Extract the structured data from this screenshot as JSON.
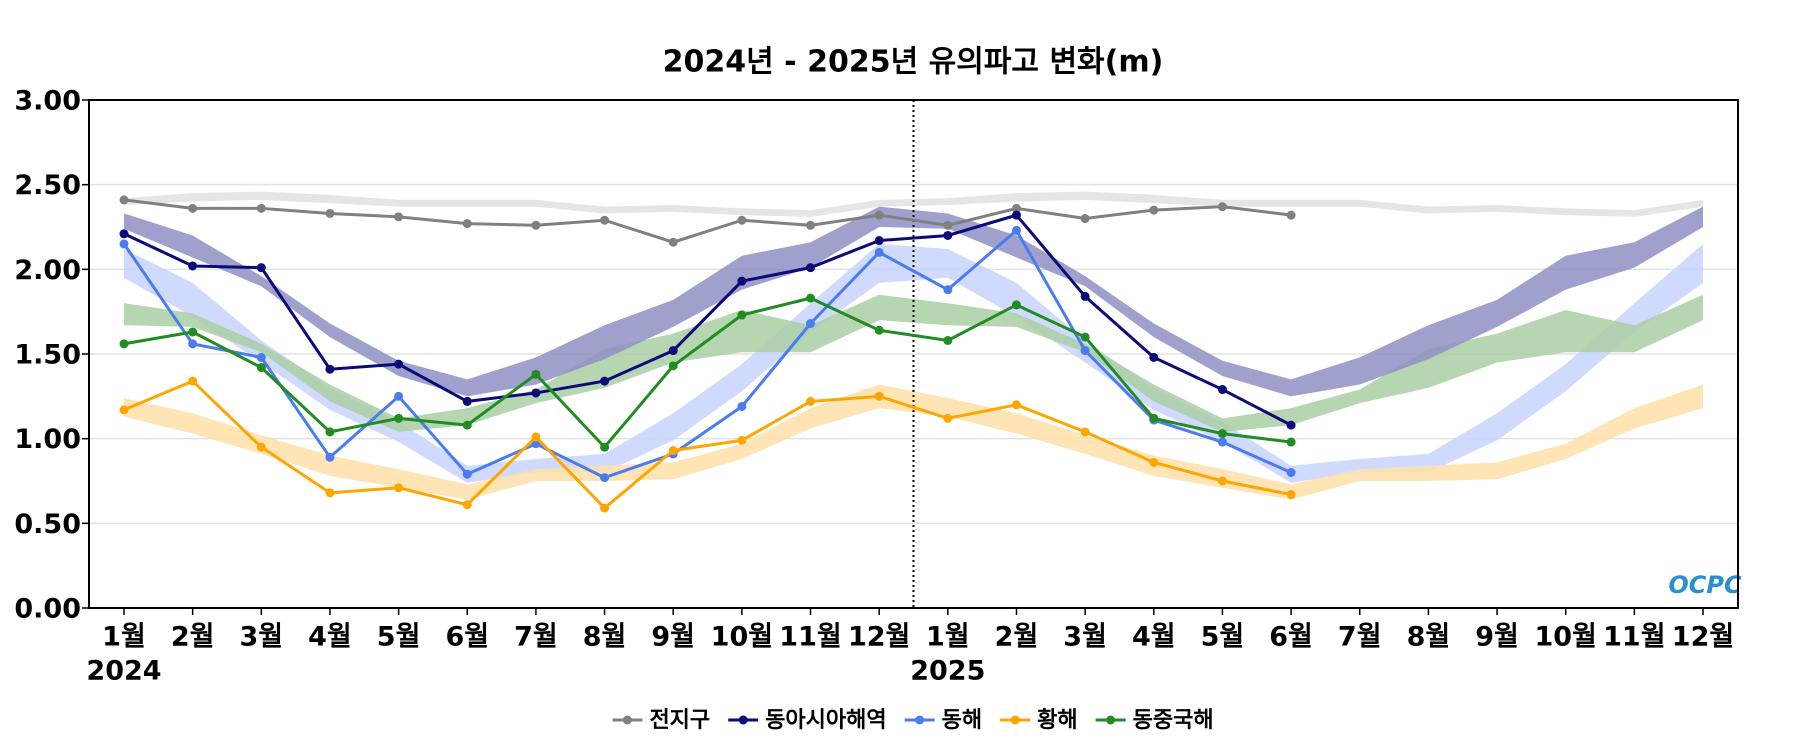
{
  "chart_data": {
    "type": "line",
    "title": "2024년 - 2025년 유의파고 변화(m)",
    "categories": [
      "1월",
      "2월",
      "3월",
      "4월",
      "5월",
      "6월",
      "7월",
      "8월",
      "9월",
      "10월",
      "11월",
      "12월",
      "1월",
      "2월",
      "3월",
      "4월",
      "5월",
      "6월",
      "7월",
      "8월",
      "9월",
      "10월",
      "11월",
      "12월"
    ],
    "years": [
      "2024",
      "2025"
    ],
    "ylim": [
      0,
      3
    ],
    "yticks": [
      {
        "value": 0,
        "label": "0.00"
      },
      {
        "value": 0.5,
        "label": "0.50"
      },
      {
        "value": 1,
        "label": "1.00"
      },
      {
        "value": 1.5,
        "label": "1.50"
      },
      {
        "value": 2,
        "label": "2.00"
      },
      {
        "value": 2.5,
        "label": "2.50"
      },
      {
        "value": 3,
        "label": "3.00"
      }
    ],
    "grid": true,
    "logo": "OCPC",
    "series": [
      {
        "name": "전지구",
        "color": "#808080",
        "values": [
          2.41,
          2.36,
          2.36,
          2.33,
          2.31,
          2.27,
          2.26,
          2.29,
          2.16,
          2.29,
          2.26,
          2.32,
          2.26,
          2.36,
          2.3,
          2.35,
          2.37,
          2.32,
          null,
          null,
          null,
          null,
          null,
          null
        ]
      },
      {
        "name": "동아시아해역",
        "color": "#0a0a78",
        "values": [
          2.21,
          2.02,
          2.01,
          1.41,
          1.44,
          1.22,
          1.27,
          1.34,
          1.52,
          1.93,
          2.01,
          2.17,
          2.2,
          2.32,
          1.84,
          1.48,
          1.29,
          1.08,
          null,
          null,
          null,
          null,
          null,
          null
        ]
      },
      {
        "name": "동해",
        "color": "#4a7cf0",
        "values": [
          2.15,
          1.56,
          1.48,
          0.89,
          1.25,
          0.79,
          0.97,
          0.77,
          0.91,
          1.19,
          1.68,
          2.1,
          1.88,
          2.23,
          1.52,
          1.11,
          0.98,
          0.8,
          null,
          null,
          null,
          null,
          null,
          null
        ]
      },
      {
        "name": "황해",
        "color": "#ffa500",
        "values": [
          1.17,
          1.34,
          0.95,
          0.68,
          0.71,
          0.61,
          1.01,
          0.59,
          0.93,
          0.99,
          1.22,
          1.25,
          1.12,
          1.2,
          1.04,
          0.86,
          0.75,
          0.67,
          null,
          null,
          null,
          null,
          null,
          null
        ]
      },
      {
        "name": "동중국해",
        "color": "#228b22",
        "values": [
          1.56,
          1.63,
          1.42,
          1.04,
          1.12,
          1.08,
          1.38,
          0.95,
          1.43,
          1.73,
          1.83,
          1.64,
          1.58,
          1.79,
          1.6,
          1.12,
          1.03,
          0.98,
          null,
          null,
          null,
          null,
          null,
          null
        ]
      }
    ],
    "bands": [
      {
        "color": "#e0e0e0",
        "high": [
          2.42,
          2.45,
          2.46,
          2.44,
          2.41,
          2.41,
          2.41,
          2.37,
          2.38,
          2.36,
          2.35,
          2.41,
          2.42,
          2.45,
          2.46,
          2.44,
          2.41,
          2.41,
          2.41,
          2.37,
          2.38,
          2.36,
          2.35,
          2.41
        ],
        "low": [
          2.38,
          2.4,
          2.41,
          2.39,
          2.37,
          2.37,
          2.37,
          2.33,
          2.34,
          2.32,
          2.31,
          2.37,
          2.38,
          2.4,
          2.41,
          2.39,
          2.37,
          2.37,
          2.37,
          2.33,
          2.34,
          2.32,
          2.31,
          2.37
        ]
      },
      {
        "color": "#c8d4ff",
        "high": [
          2.12,
          1.92,
          1.58,
          1.3,
          1.1,
          0.84,
          0.88,
          0.91,
          1.15,
          1.44,
          1.8,
          2.15,
          2.12,
          1.92,
          1.58,
          1.3,
          1.1,
          0.84,
          0.88,
          0.91,
          1.15,
          1.44,
          1.8,
          2.15
        ],
        "low": [
          1.95,
          1.72,
          1.45,
          1.17,
          0.98,
          0.74,
          0.8,
          0.8,
          0.99,
          1.28,
          1.63,
          1.92,
          1.95,
          1.72,
          1.45,
          1.17,
          0.98,
          0.74,
          0.8,
          0.8,
          0.99,
          1.28,
          1.63,
          1.92
        ]
      },
      {
        "color": "#ffe0a8",
        "high": [
          1.24,
          1.15,
          1.02,
          0.9,
          0.82,
          0.73,
          0.82,
          0.84,
          0.86,
          0.97,
          1.18,
          1.32,
          1.24,
          1.15,
          1.02,
          0.9,
          0.82,
          0.73,
          0.82,
          0.84,
          0.86,
          0.97,
          1.18,
          1.32
        ],
        "low": [
          1.13,
          1.03,
          0.91,
          0.78,
          0.71,
          0.64,
          0.75,
          0.75,
          0.76,
          0.88,
          1.06,
          1.18,
          1.13,
          1.03,
          0.91,
          0.78,
          0.71,
          0.64,
          0.75,
          0.75,
          0.76,
          0.88,
          1.06,
          1.18
        ]
      },
      {
        "color": "#a9cfa3",
        "high": [
          1.8,
          1.74,
          1.56,
          1.32,
          1.12,
          1.18,
          1.29,
          1.53,
          1.62,
          1.76,
          1.67,
          1.85,
          1.8,
          1.74,
          1.56,
          1.32,
          1.12,
          1.18,
          1.29,
          1.53,
          1.62,
          1.76,
          1.67,
          1.85
        ],
        "low": [
          1.67,
          1.66,
          1.51,
          1.22,
          1.04,
          1.08,
          1.21,
          1.3,
          1.45,
          1.51,
          1.51,
          1.7,
          1.67,
          1.66,
          1.51,
          1.22,
          1.04,
          1.08,
          1.21,
          1.3,
          1.45,
          1.51,
          1.51,
          1.7
        ]
      },
      {
        "color": "#8f8fc4",
        "high": [
          2.33,
          2.2,
          1.96,
          1.68,
          1.46,
          1.35,
          1.48,
          1.67,
          1.82,
          2.08,
          2.16,
          2.37,
          2.33,
          2.2,
          1.96,
          1.68,
          1.46,
          1.35,
          1.48,
          1.67,
          1.82,
          2.08,
          2.16,
          2.37
        ],
        "low": [
          2.24,
          2.07,
          1.9,
          1.6,
          1.37,
          1.25,
          1.32,
          1.47,
          1.66,
          1.88,
          2.01,
          2.25,
          2.24,
          2.07,
          1.9,
          1.6,
          1.37,
          1.25,
          1.32,
          1.47,
          1.66,
          1.88,
          2.01,
          2.25
        ]
      }
    ]
  }
}
